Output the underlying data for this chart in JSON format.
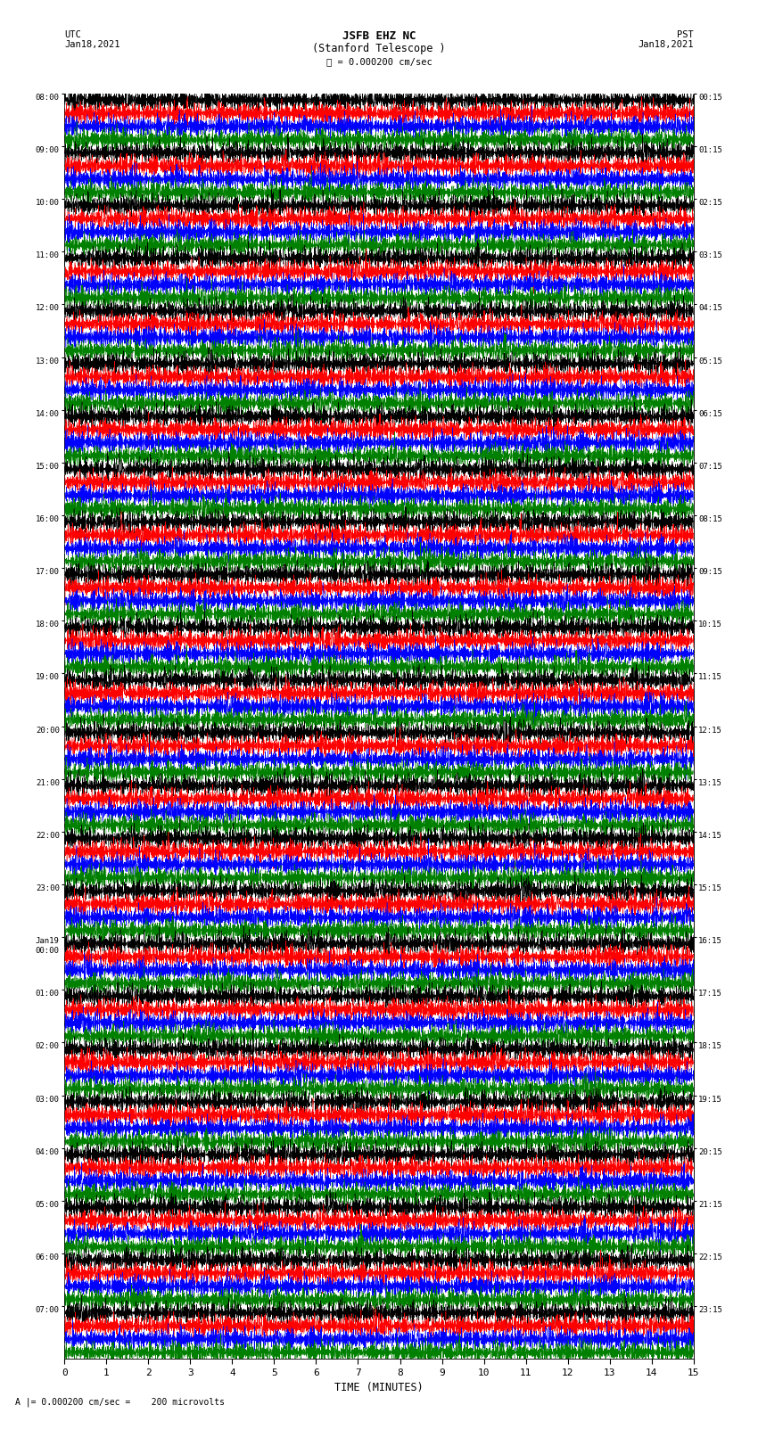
{
  "title_line1": "JSFB EHZ NC",
  "title_line2": "(Stanford Telescope )",
  "scale_label": "= 0.000200 cm/sec",
  "scale_label2": "200 microvolts",
  "xlabel": "TIME (MINUTES)",
  "left_times_utc": [
    "08:00",
    "09:00",
    "10:00",
    "11:00",
    "12:00",
    "13:00",
    "14:00",
    "15:00",
    "16:00",
    "17:00",
    "18:00",
    "19:00",
    "20:00",
    "21:00",
    "22:00",
    "23:00",
    "Jan19\n00:00",
    "01:00",
    "02:00",
    "03:00",
    "04:00",
    "05:00",
    "06:00",
    "07:00"
  ],
  "right_times_pst": [
    "00:15",
    "01:15",
    "02:15",
    "03:15",
    "04:15",
    "05:15",
    "06:15",
    "07:15",
    "08:15",
    "09:15",
    "10:15",
    "11:15",
    "12:15",
    "13:15",
    "14:15",
    "15:15",
    "16:15",
    "17:15",
    "18:15",
    "19:15",
    "20:15",
    "21:15",
    "22:15",
    "23:15"
  ],
  "trace_colors": [
    "black",
    "red",
    "blue",
    "green"
  ],
  "n_rows": 24,
  "traces_per_row": 4,
  "x_min": 0,
  "x_max": 15,
  "bg_color": "white",
  "fig_width": 8.5,
  "fig_height": 16.13,
  "dpi": 100
}
